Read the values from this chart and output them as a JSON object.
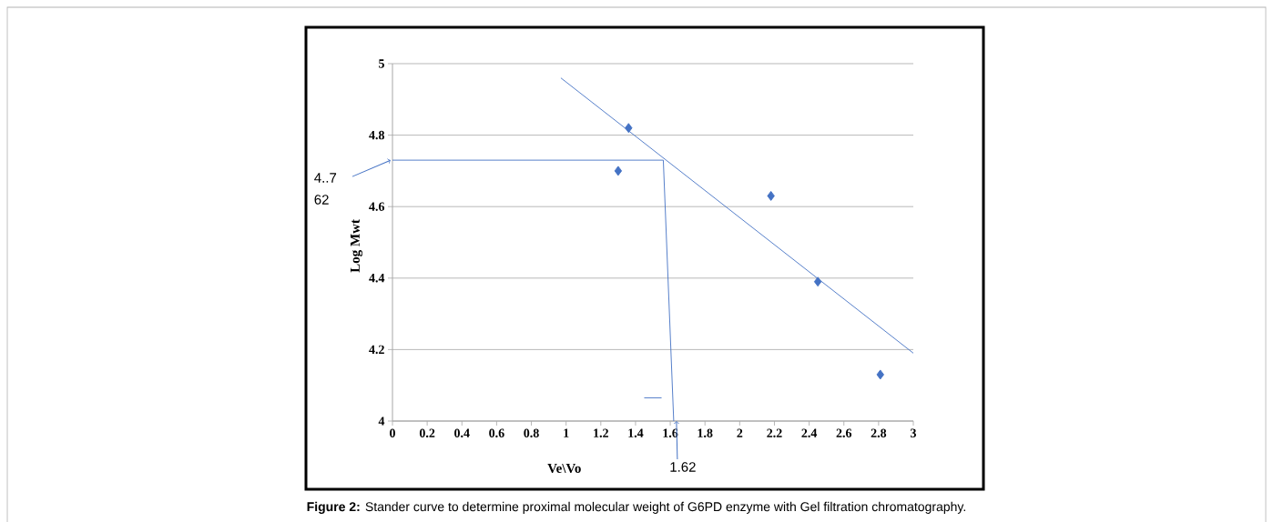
{
  "chart_data": {
    "type": "scatter",
    "xlabel": "Ve\\Vo",
    "ylabel": "Log Mwt",
    "xlim": [
      0,
      3
    ],
    "xticks": [
      0,
      0.2,
      0.4,
      0.6,
      0.8,
      1,
      1.2,
      1.4,
      1.6,
      1.8,
      2,
      2.2,
      2.4,
      2.6,
      2.8,
      3
    ],
    "ylim": [
      4,
      5
    ],
    "yticks": [
      4,
      4.2,
      4.4,
      4.6,
      4.8,
      5
    ],
    "grid": "y",
    "marker": "diamond",
    "series": [
      {
        "type": "scatter",
        "color": "#4472c4",
        "x": [
          1.3,
          1.36,
          2.18,
          2.45,
          2.81
        ],
        "values": [
          4.7,
          4.82,
          4.63,
          4.39,
          4.13
        ]
      },
      {
        "type": "line",
        "color": "#4472c4",
        "marker": "none",
        "x": [
          0.97,
          3.0
        ],
        "values": [
          4.96,
          4.19
        ]
      },
      {
        "type": "line",
        "color": "#4472c4",
        "marker": "none",
        "x": [
          0,
          1.56,
          1.62
        ],
        "values": [
          4.73,
          4.73,
          4.0
        ]
      },
      {
        "type": "line",
        "color": "#4472c4",
        "marker": "none",
        "x": [
          1.45,
          1.55
        ],
        "values": [
          4.065,
          4.065
        ]
      }
    ],
    "annotations": [
      {
        "text": "4..7 62",
        "x": 0,
        "y": 4.73
      },
      {
        "text": "1.62",
        "x": 1.62,
        "y": 4.0
      },
      "**Figure 2:** Stander curve to determine proximal molecular weight of G6PD enzyme with Gel filtration chromatography."
    ]
  }
}
